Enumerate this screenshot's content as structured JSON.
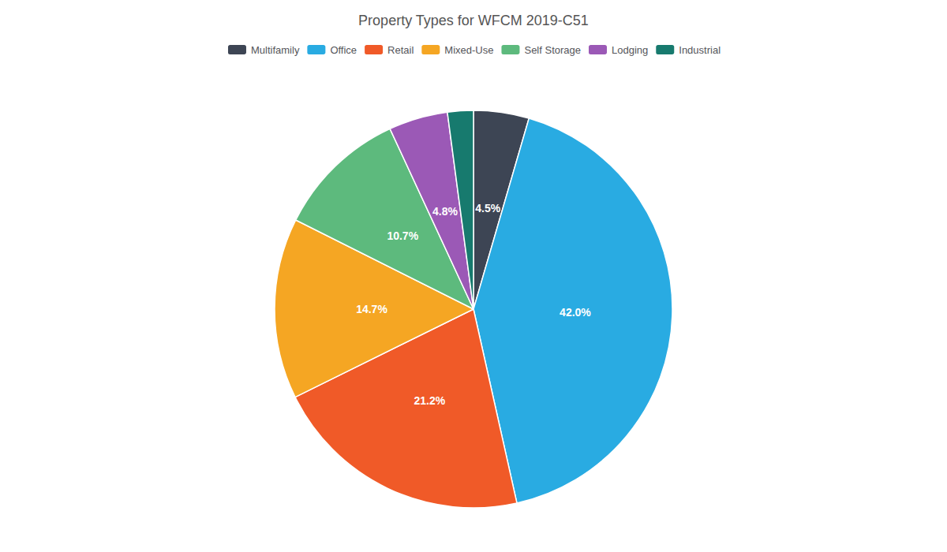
{
  "chart_data": {
    "type": "pie",
    "title": "Property Types for WFCM 2019-C51",
    "categories": [
      "Multifamily",
      "Office",
      "Retail",
      "Mixed-Use",
      "Self Storage",
      "Lodging",
      "Industrial"
    ],
    "values": [
      4.5,
      42.0,
      21.2,
      14.7,
      10.7,
      4.8,
      2.1
    ],
    "value_labels": [
      "4.5%",
      "42.0%",
      "21.2%",
      "14.7%",
      "10.7%",
      "4.8%",
      null
    ],
    "colors": [
      "#3d4554",
      "#29abe2",
      "#f05a28",
      "#f5a623",
      "#5dba7d",
      "#9b59b6",
      "#177a6e"
    ],
    "data_labels": true,
    "legend": "top"
  }
}
